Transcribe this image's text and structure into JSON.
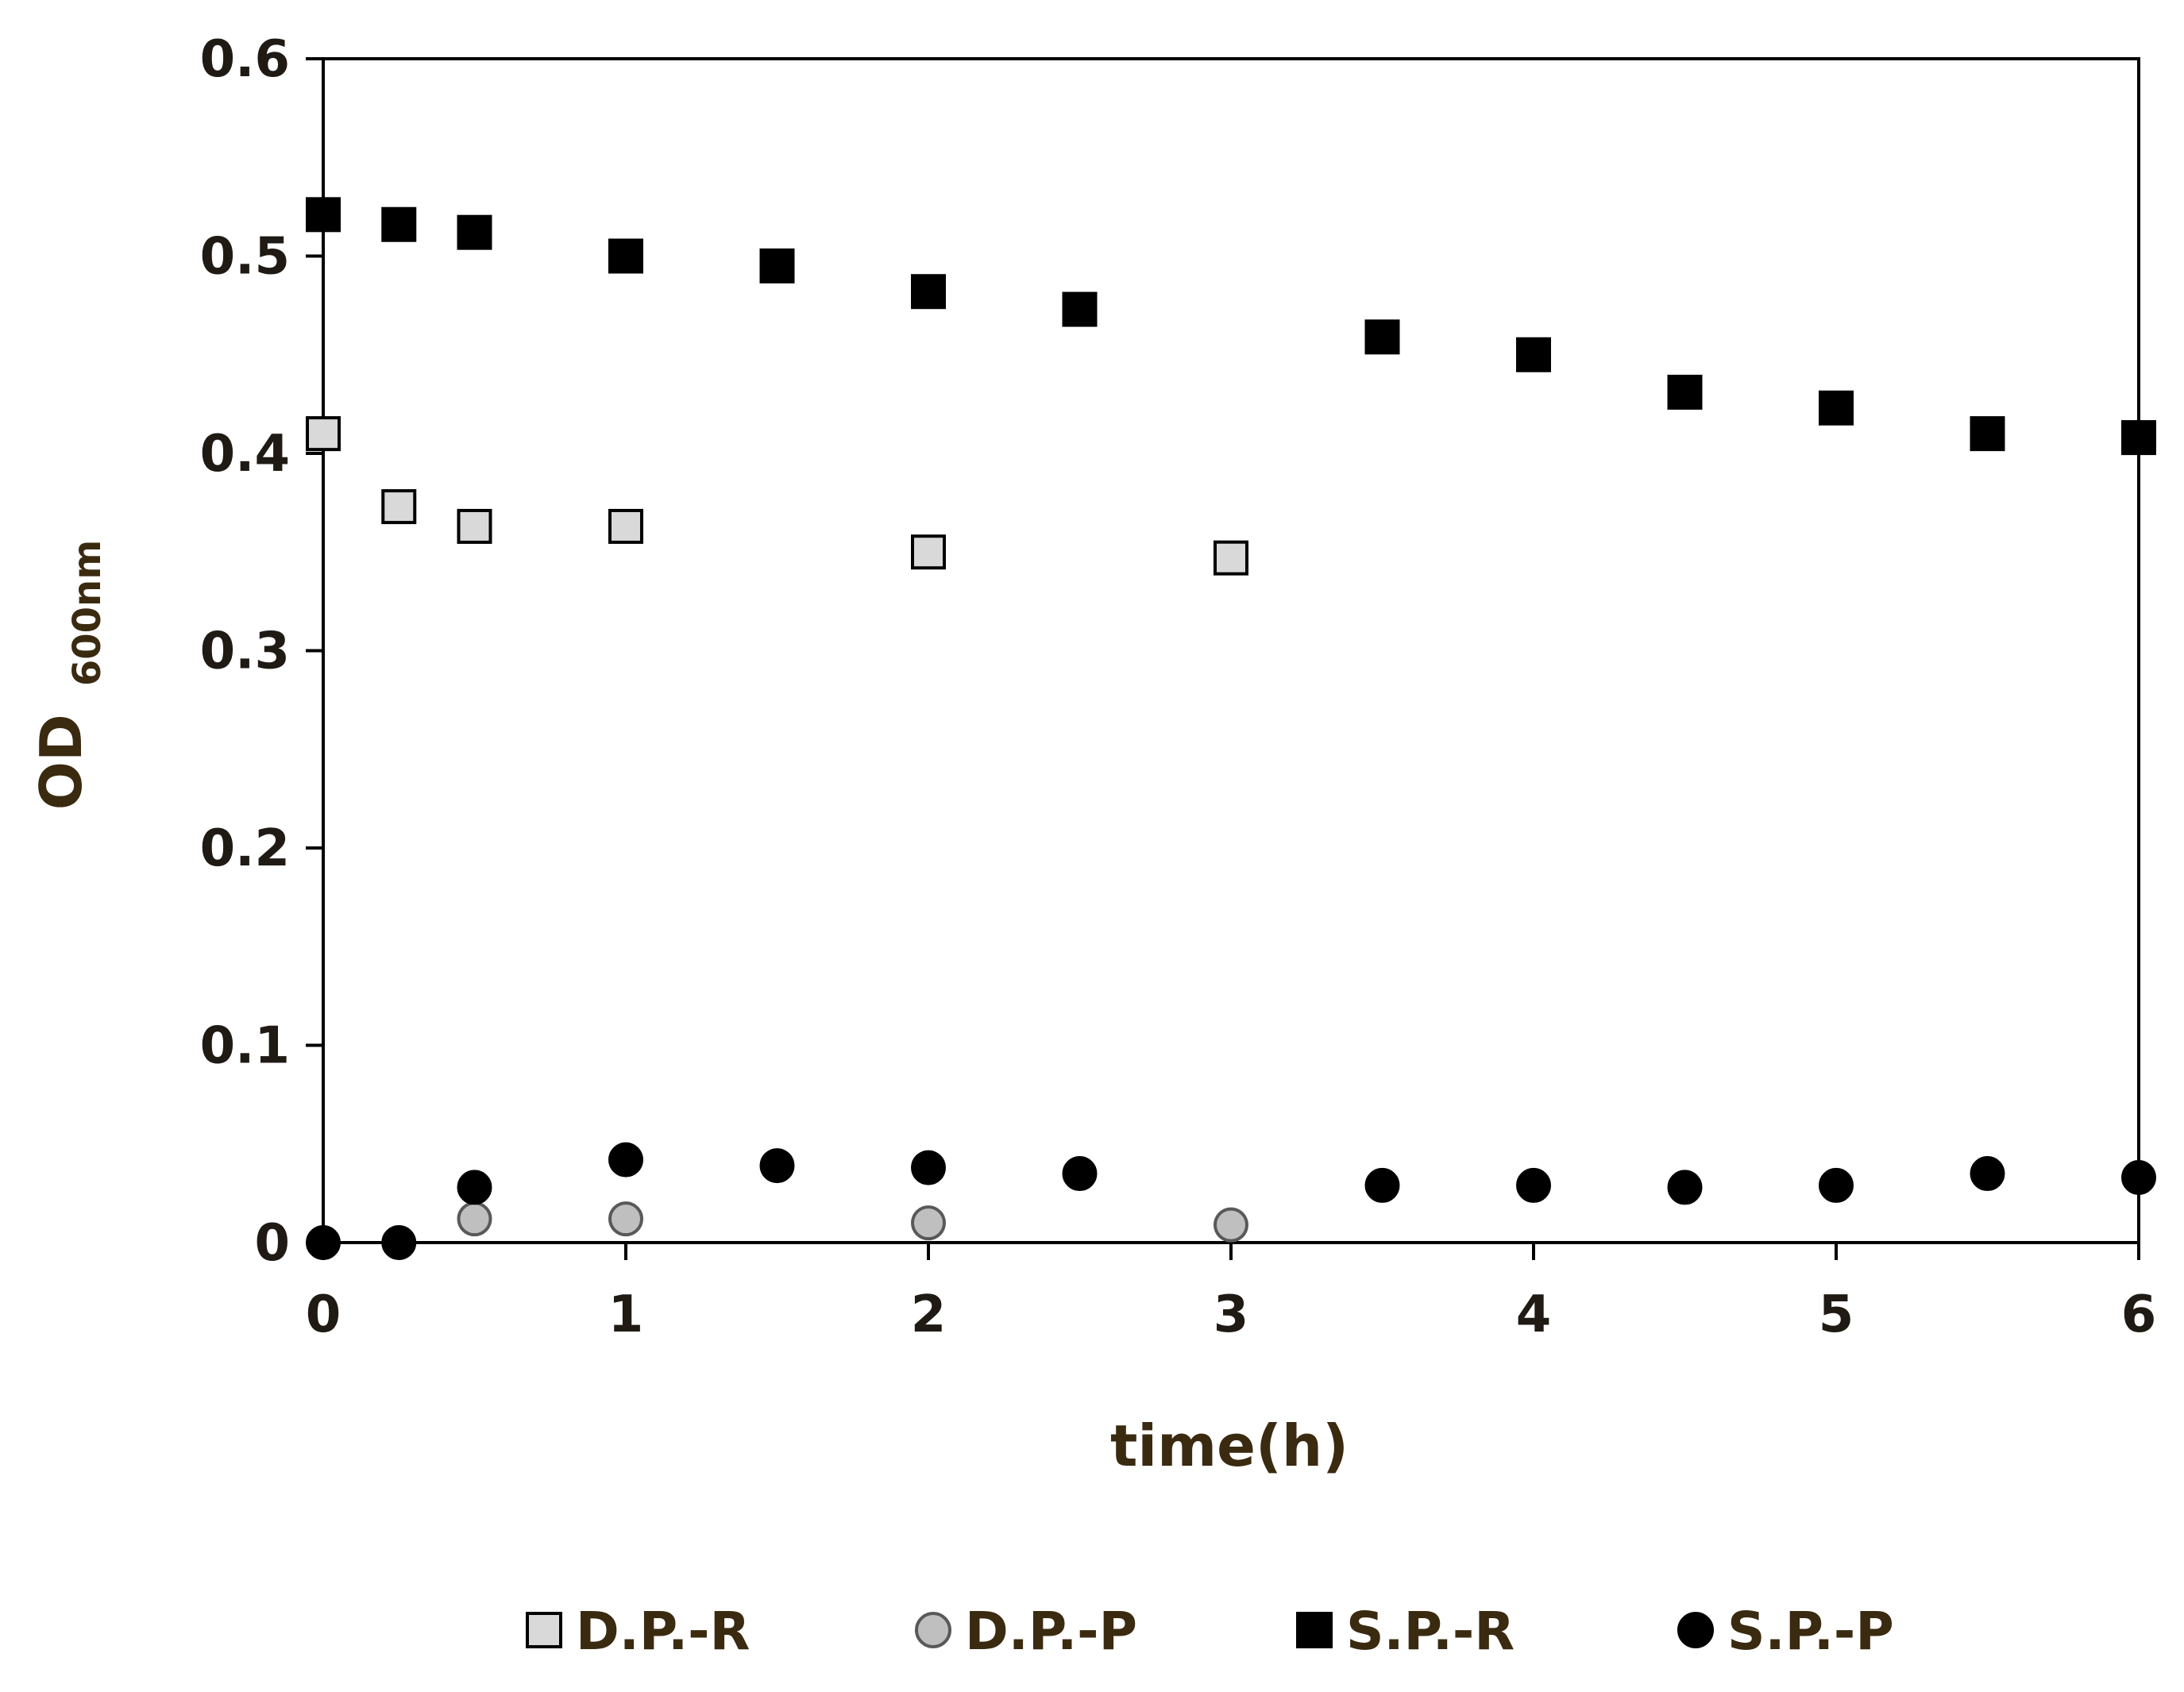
{
  "chart_data": {
    "type": "scatter",
    "title": "",
    "xlabel": "time(h)",
    "ylabel": {
      "main": "OD",
      "subscript": "600nm"
    },
    "xlim": [
      0,
      6
    ],
    "ylim": [
      0,
      0.6
    ],
    "xticks": [
      0,
      1,
      2,
      3,
      4,
      5,
      6
    ],
    "xtick_labels": [
      "0",
      "1",
      "2",
      "3",
      "4",
      "5",
      "6"
    ],
    "yticks": [
      0,
      0.1,
      0.2,
      0.3,
      0.4,
      0.5,
      0.6
    ],
    "ytick_labels": [
      "0",
      "0.1",
      "0.2",
      "0.3",
      "0.4",
      "0.5",
      "0.6"
    ],
    "grid": false,
    "legend_position": "bottom",
    "series": [
      {
        "name": "D.P.-R",
        "marker": "square",
        "fill": "#d9d9d9",
        "stroke": "#000000",
        "points": [
          [
            0,
            0.41
          ],
          [
            0.25,
            0.373
          ],
          [
            0.5,
            0.363
          ],
          [
            1,
            0.363
          ],
          [
            2,
            0.35
          ],
          [
            3,
            0.347
          ]
        ]
      },
      {
        "name": "D.P.-P",
        "marker": "circle",
        "fill": "#bfbfbf",
        "stroke": "#595959",
        "points": [
          [
            0.5,
            0.012
          ],
          [
            1,
            0.012
          ],
          [
            2,
            0.01
          ],
          [
            3,
            0.009
          ]
        ]
      },
      {
        "name": "S.P.-R",
        "marker": "square",
        "fill": "#000000",
        "stroke": "#000000",
        "points": [
          [
            0,
            0.521
          ],
          [
            0.25,
            0.516
          ],
          [
            0.5,
            0.512
          ],
          [
            1,
            0.5
          ],
          [
            1.5,
            0.495
          ],
          [
            2,
            0.482
          ],
          [
            2.5,
            0.473
          ],
          [
            3.5,
            0.459
          ],
          [
            4,
            0.45
          ],
          [
            4.5,
            0.431
          ],
          [
            5,
            0.423
          ],
          [
            5.5,
            0.41
          ],
          [
            6,
            0.408
          ]
        ]
      },
      {
        "name": "S.P.-P",
        "marker": "circle",
        "fill": "#000000",
        "stroke": "#000000",
        "points": [
          [
            0,
            0.0
          ],
          [
            0.25,
            0.0
          ],
          [
            0.5,
            0.028
          ],
          [
            1,
            0.042
          ],
          [
            1.5,
            0.039
          ],
          [
            2,
            0.038
          ],
          [
            2.5,
            0.035
          ],
          [
            3.5,
            0.029
          ],
          [
            4,
            0.029
          ],
          [
            4.5,
            0.028
          ],
          [
            5,
            0.029
          ],
          [
            5.5,
            0.035
          ],
          [
            6,
            0.033
          ]
        ]
      }
    ]
  },
  "colors": {
    "tick_label": "#1f1a14",
    "axis_title": "#3a2a10",
    "axis_line": "#000000"
  }
}
